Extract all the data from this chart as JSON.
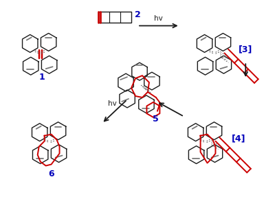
{
  "bg_color": "#ffffff",
  "black": "#1a1a1a",
  "red": "#cc0000",
  "blue": "#0000bb",
  "gray": "#777777",
  "dashed_color": "#666666",
  "label1": "1",
  "label2": "2",
  "label3": "[3]",
  "label4": "[4]",
  "label5": "5",
  "label6": "6",
  "arrow_hv": "hv",
  "figsize": [
    4.0,
    2.9
  ],
  "dpi": 100
}
